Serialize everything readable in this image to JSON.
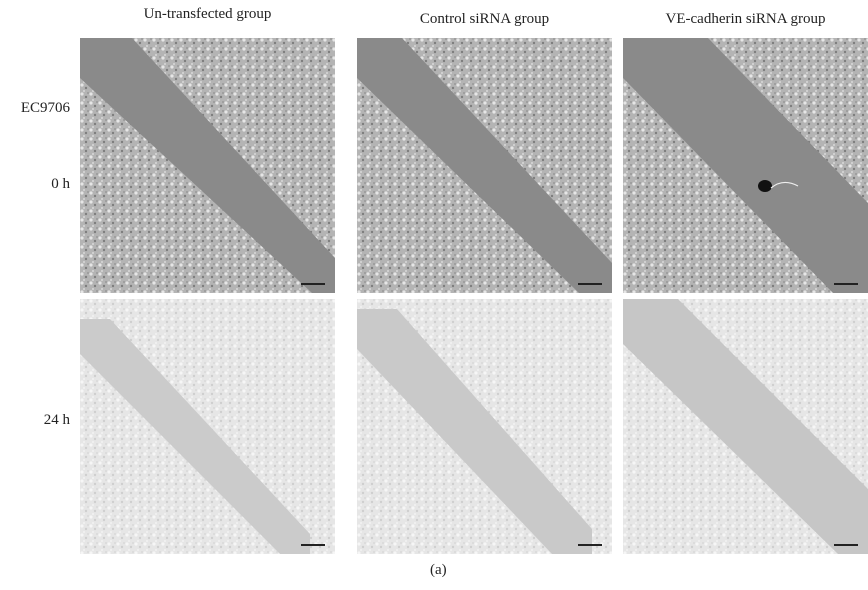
{
  "columns": [
    {
      "title": "Un-transfected group"
    },
    {
      "title": "Control siRNA group"
    },
    {
      "title": "VE-cadherin siRNA group"
    }
  ],
  "cell_line": "EC9706",
  "rows": [
    {
      "label": "0 h"
    },
    {
      "label": "24 h"
    }
  ],
  "caption": "(a)",
  "colors": {
    "wound_dark": "#8a8a8a",
    "cells_dark": "#b2b2b2",
    "wound_light": "#c9c9c9",
    "cells_light": "#e8e8e8"
  }
}
